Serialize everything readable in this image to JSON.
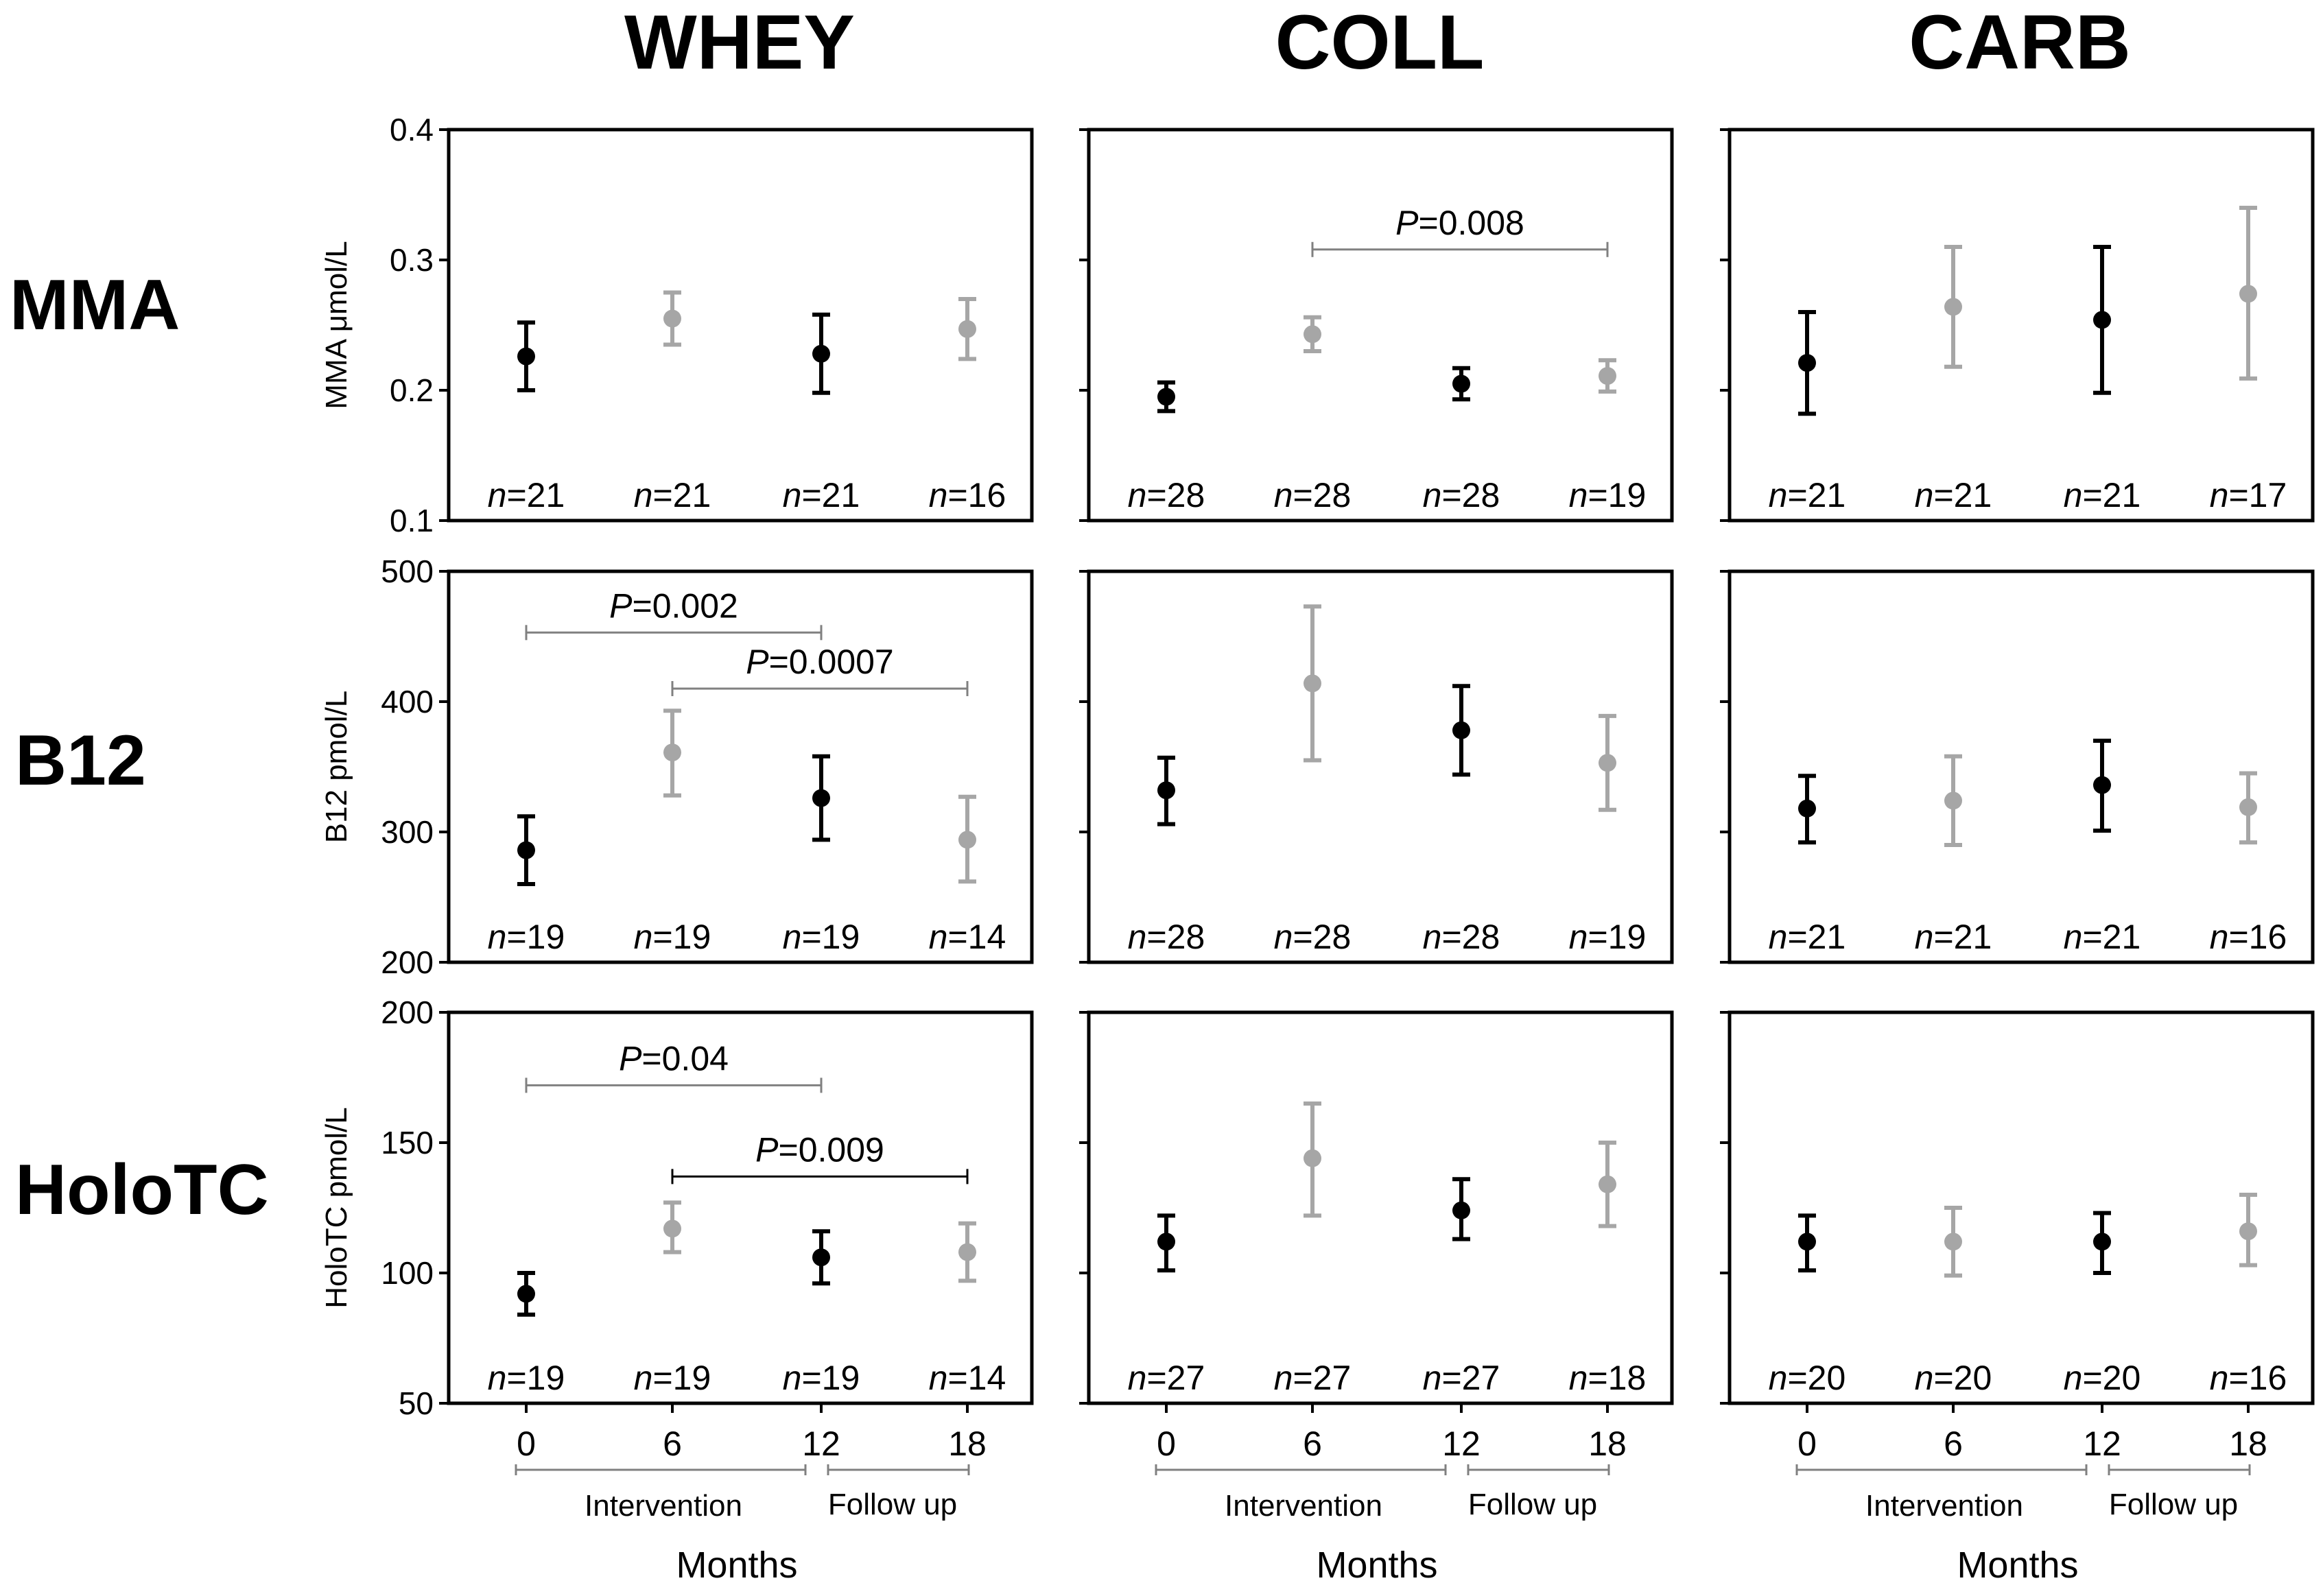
{
  "column_titles": [
    "WHEY",
    "COLL",
    "CARB"
  ],
  "row_titles": [
    "MMA",
    "B12",
    "HoloTC"
  ],
  "phase_labels": {
    "intervention": "Intervention",
    "follow_up": "Follow up"
  },
  "colors": {
    "intervention": "#000000",
    "follow_up": "#a6a6a6",
    "bracket_light": "#808080"
  },
  "chart_data": [
    {
      "type": "scatter",
      "row": "MMA",
      "group": "WHEY",
      "ylabel": "MMA μmol/L",
      "ylim": [
        0.1,
        0.4
      ],
      "yticks": [
        "0.1",
        "0.2",
        "0.3",
        "0.4"
      ],
      "x": [
        0,
        6,
        12,
        18
      ],
      "series": [
        {
          "values": [
            0.226,
            0.255,
            0.228,
            0.247
          ],
          "lower": [
            0.2,
            0.235,
            0.198,
            0.224
          ],
          "upper": [
            0.252,
            0.275,
            0.258,
            0.27
          ]
        }
      ],
      "n": [
        "21",
        "21",
        "21",
        "16"
      ],
      "pvalues": []
    },
    {
      "type": "scatter",
      "row": "MMA",
      "group": "COLL",
      "ylim": [
        0.1,
        0.4
      ],
      "x": [
        0,
        6,
        12,
        18
      ],
      "series": [
        {
          "values": [
            0.195,
            0.243,
            0.205,
            0.211
          ],
          "lower": [
            0.184,
            0.23,
            0.193,
            0.199
          ],
          "upper": [
            0.206,
            0.256,
            0.217,
            0.223
          ]
        }
      ],
      "n": [
        "28",
        "28",
        "28",
        "19"
      ],
      "pvalues": [
        {
          "from": 6,
          "to": 18,
          "text": "=0.008",
          "level": 0.308
        }
      ]
    },
    {
      "type": "scatter",
      "row": "MMA",
      "group": "CARB",
      "ylim": [
        0.1,
        0.4
      ],
      "x": [
        0,
        6,
        12,
        18
      ],
      "series": [
        {
          "values": [
            0.221,
            0.264,
            0.254,
            0.274
          ],
          "lower": [
            0.182,
            0.218,
            0.198,
            0.209
          ],
          "upper": [
            0.26,
            0.31,
            0.31,
            0.34
          ]
        }
      ],
      "n": [
        "21",
        "21",
        "21",
        "17"
      ],
      "pvalues": []
    },
    {
      "type": "scatter",
      "row": "B12",
      "group": "WHEY",
      "ylabel": "B12 pmol/L",
      "ylim": [
        200,
        500
      ],
      "yticks": [
        "200",
        "300",
        "400",
        "500"
      ],
      "x": [
        0,
        6,
        12,
        18
      ],
      "series": [
        {
          "values": [
            286,
            361,
            326,
            294
          ],
          "lower": [
            260,
            328,
            294,
            262
          ],
          "upper": [
            312,
            393,
            358,
            327
          ]
        }
      ],
      "n": [
        "19",
        "19",
        "19",
        "14"
      ],
      "pvalues": [
        {
          "from": 0,
          "to": 12,
          "text": "=0.002",
          "level": 453
        },
        {
          "from": 6,
          "to": 18,
          "text": "=0.0007",
          "level": 410
        }
      ]
    },
    {
      "type": "scatter",
      "row": "B12",
      "group": "COLL",
      "ylim": [
        200,
        500
      ],
      "x": [
        0,
        6,
        12,
        18
      ],
      "series": [
        {
          "values": [
            332,
            414,
            378,
            353
          ],
          "lower": [
            306,
            355,
            344,
            317
          ],
          "upper": [
            357,
            473,
            412,
            389
          ]
        }
      ],
      "n": [
        "28",
        "28",
        "28",
        "19"
      ],
      "pvalues": []
    },
    {
      "type": "scatter",
      "row": "B12",
      "group": "CARB",
      "ylim": [
        200,
        500
      ],
      "x": [
        0,
        6,
        12,
        18
      ],
      "series": [
        {
          "values": [
            318,
            324,
            336,
            319
          ],
          "lower": [
            292,
            290,
            301,
            292
          ],
          "upper": [
            343,
            358,
            370,
            345
          ]
        }
      ],
      "n": [
        "21",
        "21",
        "21",
        "16"
      ],
      "pvalues": []
    },
    {
      "type": "scatter",
      "row": "HoloTC",
      "group": "WHEY",
      "ylabel": "HoloTC pmol/L",
      "ylim": [
        50,
        200
      ],
      "yticks": [
        "50",
        "100",
        "150",
        "200"
      ],
      "x": [
        0,
        6,
        12,
        18
      ],
      "series": [
        {
          "values": [
            92,
            117,
            106,
            108
          ],
          "lower": [
            84,
            108,
            96,
            97
          ],
          "upper": [
            100,
            127,
            116,
            119
          ]
        }
      ],
      "n": [
        "19",
        "19",
        "19",
        "14"
      ],
      "pvalues": [
        {
          "from": 0,
          "to": 12,
          "text": "=0.04",
          "level": 172
        },
        {
          "from": 6,
          "to": 18,
          "text": "=0.009",
          "level": 137
        }
      ]
    },
    {
      "type": "scatter",
      "row": "HoloTC",
      "group": "COLL",
      "ylim": [
        50,
        200
      ],
      "x": [
        0,
        6,
        12,
        18
      ],
      "series": [
        {
          "values": [
            112,
            144,
            124,
            134
          ],
          "lower": [
            101,
            122,
            113,
            118
          ],
          "upper": [
            122,
            165,
            136,
            150
          ]
        }
      ],
      "n": [
        "27",
        "27",
        "27",
        "18"
      ],
      "pvalues": []
    },
    {
      "type": "scatter",
      "row": "HoloTC",
      "group": "CARB",
      "ylim": [
        50,
        200
      ],
      "x": [
        0,
        6,
        12,
        18
      ],
      "series": [
        {
          "values": [
            112,
            112,
            112,
            116
          ],
          "lower": [
            101,
            99,
            100,
            103
          ],
          "upper": [
            122,
            125,
            123,
            130
          ]
        }
      ],
      "n": [
        "20",
        "20",
        "20",
        "16"
      ],
      "pvalues": []
    }
  ],
  "x_axis": {
    "ticks": [
      "0",
      "6",
      "12",
      "18"
    ],
    "label": "Months"
  }
}
